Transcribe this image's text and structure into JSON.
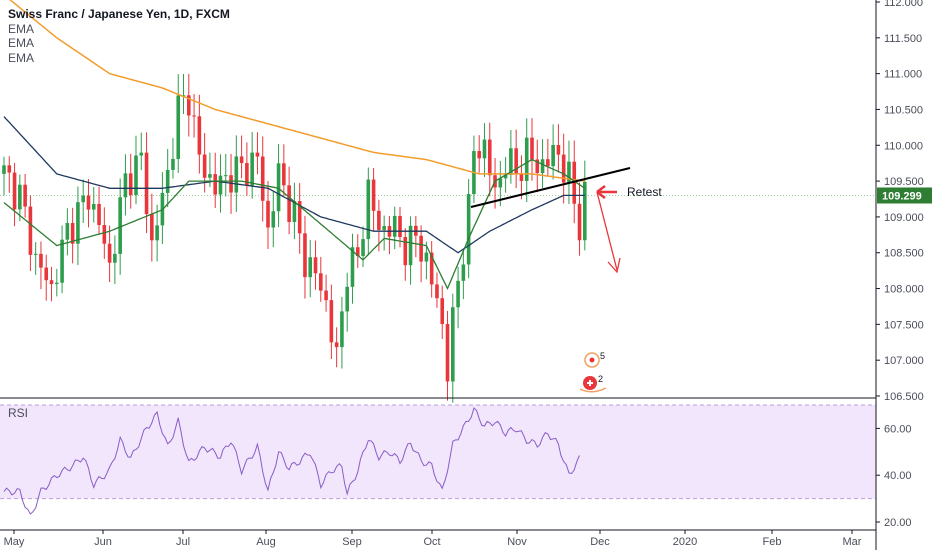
{
  "header": {
    "title": "Swiss Franc / Japanese Yen, 1D, FXCM",
    "indicators": [
      "EMA",
      "EMA",
      "EMA"
    ]
  },
  "rsi_pane": {
    "label": "RSI"
  },
  "annotation": {
    "retest_label": "Retest"
  },
  "last_price": {
    "label": "109.299",
    "value": 109.299,
    "color": "#2e7d32"
  },
  "colors": {
    "up": "#2e9d4d",
    "down": "#e8363b",
    "ema_long": "#f39c2c",
    "ema_mid": "#1f3a5f",
    "ema_short": "#2e7d32",
    "rsi_line": "#8a5cc7",
    "rsi_band": "#f1e6fb"
  },
  "chart_data": {
    "type": "candlestick",
    "title": "Swiss Franc / Japanese Yen, 1D, FXCM",
    "xlabel": "",
    "ylabel": "",
    "ylim": [
      106.5,
      112.0
    ],
    "y_ticks": [
      "112.000",
      "111.500",
      "111.000",
      "110.500",
      "110.000",
      "109.500",
      "109.000",
      "108.500",
      "108.000",
      "107.500",
      "107.000",
      "106.500"
    ],
    "x_ticks": [
      "May",
      "Jun",
      "Jul",
      "Aug",
      "Sep",
      "Oct",
      "Nov",
      "Dec",
      "2020",
      "Feb",
      "Mar"
    ],
    "close_path": [
      [
        0,
        109.6
      ],
      [
        3,
        109.3
      ],
      [
        6,
        108.4
      ],
      [
        9,
        108.0
      ],
      [
        12,
        108.8
      ],
      [
        16,
        109.3
      ],
      [
        18,
        108.9
      ],
      [
        20,
        108.3
      ],
      [
        23,
        109.5
      ],
      [
        26,
        109.8
      ],
      [
        28,
        108.6
      ],
      [
        31,
        109.6
      ],
      [
        33,
        110.5
      ],
      [
        35,
        110.7
      ],
      [
        37,
        109.8
      ],
      [
        40,
        109.4
      ],
      [
        43,
        109.6
      ],
      [
        46,
        109.7
      ],
      [
        48,
        109.8
      ],
      [
        50,
        108.8
      ],
      [
        52,
        109.6
      ],
      [
        55,
        109.0
      ],
      [
        57,
        108.4
      ],
      [
        59,
        108.2
      ],
      [
        61,
        107.8
      ],
      [
        63,
        107.0
      ],
      [
        65,
        108.3
      ],
      [
        67,
        108.4
      ],
      [
        69,
        109.4
      ],
      [
        71,
        108.8
      ],
      [
        73,
        108.9
      ],
      [
        76,
        108.6
      ],
      [
        78,
        108.7
      ],
      [
        80,
        108.4
      ],
      [
        83,
        107.5
      ],
      [
        84,
        106.9
      ],
      [
        86,
        108.1
      ],
      [
        88,
        109.1
      ],
      [
        89,
        109.9
      ],
      [
        91,
        110.0
      ],
      [
        93,
        109.3
      ],
      [
        95,
        109.8
      ],
      [
        97,
        109.6
      ],
      [
        99,
        109.9
      ],
      [
        101,
        109.7
      ],
      [
        103,
        109.8
      ],
      [
        105,
        109.9
      ],
      [
        107,
        109.5
      ],
      [
        108,
        109.2
      ],
      [
        109,
        108.9
      ],
      [
        110,
        109.3
      ]
    ],
    "ema_short": [
      [
        0,
        109.2
      ],
      [
        10,
        108.6
      ],
      [
        20,
        108.8
      ],
      [
        30,
        109.1
      ],
      [
        35,
        109.5
      ],
      [
        45,
        109.5
      ],
      [
        52,
        109.4
      ],
      [
        60,
        108.9
      ],
      [
        68,
        108.4
      ],
      [
        72,
        108.7
      ],
      [
        80,
        108.6
      ],
      [
        84,
        108.0
      ],
      [
        88,
        108.7
      ],
      [
        93,
        109.5
      ],
      [
        100,
        109.8
      ],
      [
        106,
        109.6
      ],
      [
        110,
        109.4
      ]
    ],
    "ema_mid": [
      [
        0,
        110.4
      ],
      [
        10,
        109.6
      ],
      [
        20,
        109.4
      ],
      [
        30,
        109.4
      ],
      [
        40,
        109.5
      ],
      [
        50,
        109.4
      ],
      [
        60,
        109.0
      ],
      [
        70,
        108.8
      ],
      [
        80,
        108.8
      ],
      [
        86,
        108.5
      ],
      [
        92,
        108.8
      ],
      [
        100,
        109.1
      ],
      [
        106,
        109.3
      ],
      [
        110,
        109.3
      ]
    ],
    "ema_long": [
      [
        0,
        112.1
      ],
      [
        10,
        111.5
      ],
      [
        20,
        111.0
      ],
      [
        30,
        110.8
      ],
      [
        40,
        110.5
      ],
      [
        50,
        110.3
      ],
      [
        60,
        110.1
      ],
      [
        70,
        109.9
      ],
      [
        80,
        109.8
      ],
      [
        90,
        109.6
      ],
      [
        100,
        109.6
      ],
      [
        110,
        109.5
      ]
    ],
    "rsi": {
      "ticks": [
        "60.00",
        "40.00",
        "20.00"
      ],
      "ylim": [
        20,
        70
      ],
      "band": [
        30,
        70
      ],
      "values": [
        [
          0,
          33
        ],
        [
          3,
          33
        ],
        [
          5,
          22
        ],
        [
          7,
          33
        ],
        [
          10,
          40
        ],
        [
          13,
          44
        ],
        [
          15,
          48
        ],
        [
          17,
          36
        ],
        [
          20,
          42
        ],
        [
          22,
          55
        ],
        [
          24,
          47
        ],
        [
          27,
          60
        ],
        [
          29,
          66
        ],
        [
          31,
          52
        ],
        [
          33,
          63
        ],
        [
          35,
          45
        ],
        [
          38,
          52
        ],
        [
          41,
          48
        ],
        [
          43,
          55
        ],
        [
          45,
          42
        ],
        [
          48,
          52
        ],
        [
          50,
          33
        ],
        [
          52,
          50
        ],
        [
          54,
          43
        ],
        [
          56,
          46
        ],
        [
          58,
          50
        ],
        [
          60,
          36
        ],
        [
          62,
          42
        ],
        [
          64,
          44
        ],
        [
          65,
          32
        ],
        [
          67,
          42
        ],
        [
          69,
          56
        ],
        [
          71,
          48
        ],
        [
          73,
          50
        ],
        [
          75,
          46
        ],
        [
          77,
          54
        ],
        [
          79,
          46
        ],
        [
          81,
          44
        ],
        [
          83,
          33
        ],
        [
          85,
          53
        ],
        [
          87,
          60
        ],
        [
          89,
          68
        ],
        [
          91,
          61
        ],
        [
          93,
          63
        ],
        [
          95,
          58
        ],
        [
          97,
          60
        ],
        [
          99,
          55
        ],
        [
          101,
          53
        ],
        [
          103,
          58
        ],
        [
          105,
          53
        ],
        [
          107,
          40
        ],
        [
          109,
          47
        ]
      ]
    }
  }
}
